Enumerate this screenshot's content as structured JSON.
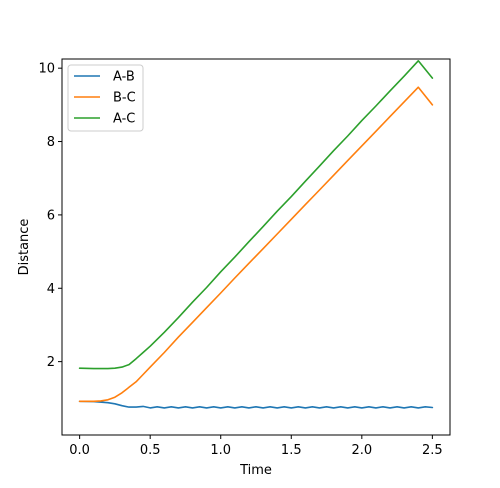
{
  "chart_data": {
    "type": "line",
    "title": "",
    "xlabel": "Time",
    "ylabel": "Distance",
    "xlim": [
      -0.125,
      2.625
    ],
    "ylim": [
      0.0,
      10.25
    ],
    "x_ticks": [
      0.0,
      0.5,
      1.0,
      1.5,
      2.0,
      2.5
    ],
    "x_tick_labels": [
      "0.0",
      "0.5",
      "1.0",
      "1.5",
      "2.0",
      "2.5"
    ],
    "y_ticks": [
      2,
      4,
      6,
      8,
      10
    ],
    "y_tick_labels": [
      "2",
      "4",
      "6",
      "8",
      "10"
    ],
    "grid": false,
    "legend_position": "top-left",
    "series": [
      {
        "name": "A-B",
        "color": "#1f77b4",
        "x": [
          0.0,
          0.1,
          0.2,
          0.25,
          0.3,
          0.35,
          0.4,
          0.45,
          0.5,
          0.55,
          0.6,
          0.65,
          0.7,
          0.75,
          0.8,
          0.85,
          0.9,
          0.95,
          1.0,
          1.05,
          1.1,
          1.15,
          1.2,
          1.25,
          1.3,
          1.35,
          1.4,
          1.45,
          1.5,
          1.55,
          1.6,
          1.65,
          1.7,
          1.75,
          1.8,
          1.85,
          1.9,
          1.95,
          2.0,
          2.05,
          2.1,
          2.15,
          2.2,
          2.25,
          2.3,
          2.35,
          2.4,
          2.45,
          2.5
        ],
        "y": [
          0.92,
          0.91,
          0.88,
          0.85,
          0.8,
          0.76,
          0.76,
          0.78,
          0.74,
          0.77,
          0.74,
          0.77,
          0.74,
          0.77,
          0.74,
          0.77,
          0.74,
          0.77,
          0.74,
          0.77,
          0.74,
          0.77,
          0.74,
          0.77,
          0.74,
          0.77,
          0.74,
          0.77,
          0.74,
          0.77,
          0.74,
          0.77,
          0.74,
          0.77,
          0.74,
          0.77,
          0.74,
          0.77,
          0.74,
          0.77,
          0.74,
          0.77,
          0.74,
          0.77,
          0.74,
          0.77,
          0.74,
          0.77,
          0.75
        ]
      },
      {
        "name": "B-C",
        "color": "#ff7f0e",
        "x": [
          0.0,
          0.1,
          0.15,
          0.2,
          0.25,
          0.3,
          0.35,
          0.4,
          0.45,
          0.5,
          0.6,
          0.7,
          0.8,
          0.9,
          1.0,
          1.1,
          1.2,
          1.3,
          1.4,
          1.5,
          1.6,
          1.7,
          1.8,
          1.9,
          2.0,
          2.1,
          2.2,
          2.3,
          2.4,
          2.5
        ],
        "y": [
          0.92,
          0.92,
          0.93,
          0.96,
          1.03,
          1.15,
          1.3,
          1.45,
          1.65,
          1.85,
          2.25,
          2.67,
          3.07,
          3.47,
          3.87,
          4.28,
          4.68,
          5.08,
          5.48,
          5.88,
          6.28,
          6.68,
          7.08,
          7.48,
          7.88,
          8.28,
          8.68,
          9.08,
          9.48,
          9.0
        ]
      },
      {
        "name": "A-C",
        "color": "#2ca02c",
        "x": [
          0.0,
          0.1,
          0.2,
          0.25,
          0.3,
          0.35,
          0.4,
          0.45,
          0.5,
          0.6,
          0.7,
          0.8,
          0.9,
          1.0,
          1.1,
          1.2,
          1.3,
          1.4,
          1.5,
          1.6,
          1.7,
          1.8,
          1.9,
          2.0,
          2.1,
          2.2,
          2.3,
          2.4,
          2.5
        ],
        "y": [
          1.82,
          1.81,
          1.81,
          1.82,
          1.85,
          1.92,
          2.08,
          2.25,
          2.42,
          2.8,
          3.2,
          3.62,
          4.02,
          4.45,
          4.85,
          5.27,
          5.68,
          6.1,
          6.5,
          6.92,
          7.33,
          7.75,
          8.15,
          8.57,
          8.97,
          9.38,
          9.78,
          10.2,
          9.73
        ]
      }
    ]
  }
}
